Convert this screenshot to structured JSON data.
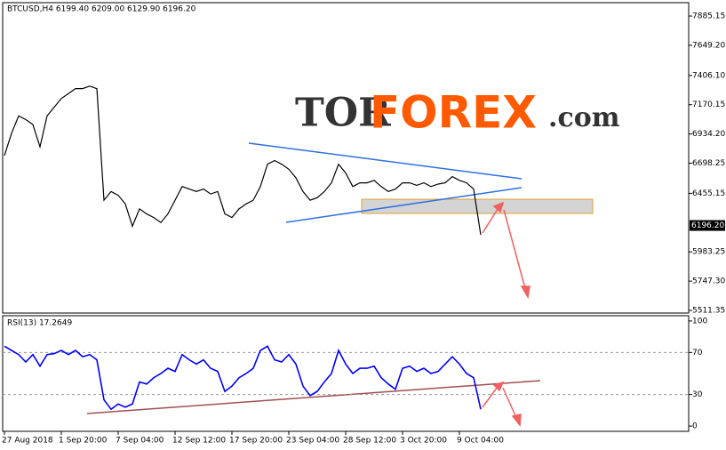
{
  "chart_data": [
    {
      "type": "line",
      "header": "BTCUSD,H4  6199.40 6209.00 6129.90 6196.20",
      "logo": {
        "tor": "TOR",
        "forex": "FOREX",
        "com": ".com"
      },
      "series": [
        {
          "name": "BTCUSD",
          "color": "#000000",
          "values": [
            6760,
            6940,
            7080,
            7050,
            7010,
            6830,
            7080,
            7150,
            7220,
            7260,
            7300,
            7300,
            7320,
            7300,
            6400,
            6470,
            6440,
            6370,
            6190,
            6330,
            6290,
            6260,
            6220,
            6290,
            6400,
            6510,
            6490,
            6470,
            6490,
            6450,
            6470,
            6290,
            6260,
            6330,
            6370,
            6400,
            6510,
            6690,
            6720,
            6690,
            6650,
            6580,
            6470,
            6400,
            6420,
            6470,
            6540,
            6690,
            6620,
            6510,
            6540,
            6540,
            6560,
            6510,
            6470,
            6490,
            6540,
            6540,
            6520,
            6540,
            6510,
            6530,
            6540,
            6590,
            6560,
            6540,
            6490,
            6120
          ]
        }
      ],
      "ylim": [
        5490,
        7993
      ],
      "yticks": [
        7885.15,
        {
          "value": 7649.2,
          "label": "7649.20"
        },
        {
          "value": 7406.1,
          "label": "7406.10"
        },
        7170.15,
        {
          "value": 6934.2,
          "label": "6934.20"
        },
        6698.25,
        6455.15,
        5983.25,
        {
          "value": 5747.3,
          "label": "5747.30"
        },
        5511.35
      ],
      "current_price": {
        "value": 6196.2,
        "label": "6196.20"
      }
    },
    {
      "type": "line",
      "header": "RSI(13) 17.2649",
      "categories": [
        "27 Aug 2018",
        null,
        null,
        null,
        null,
        null,
        null,
        null,
        "1 Sep 20:00",
        null,
        null,
        null,
        null,
        null,
        null,
        null,
        "7 Sep 04:00",
        null,
        null,
        null,
        null,
        null,
        null,
        null,
        "12 Sep 12:00",
        null,
        null,
        null,
        null,
        null,
        null,
        null,
        "17 Sep 20:00",
        null,
        null,
        null,
        null,
        null,
        null,
        null,
        "23 Sep 04:00",
        null,
        null,
        null,
        null,
        null,
        null,
        null,
        "28 Sep 12:00",
        null,
        null,
        null,
        null,
        null,
        null,
        null,
        "3 Oct 20:00",
        null,
        null,
        null,
        null,
        null,
        null,
        null,
        "9 Oct 04:00",
        null,
        null,
        null
      ],
      "series": [
        {
          "name": "RSI(13)",
          "color": "#0000ff",
          "values": [
            76,
            72,
            68,
            61,
            68,
            57,
            68,
            69,
            72,
            68,
            72,
            66,
            68,
            63,
            25,
            16,
            21,
            18,
            21,
            42,
            40,
            46,
            50,
            55,
            52,
            68,
            63,
            59,
            63,
            55,
            52,
            33,
            38,
            46,
            50,
            55,
            72,
            76,
            63,
            61,
            68,
            59,
            38,
            29,
            33,
            42,
            50,
            72,
            59,
            50,
            55,
            55,
            57,
            46,
            40,
            35,
            55,
            57,
            52,
            55,
            50,
            52,
            59,
            66,
            59,
            50,
            46,
            16
          ]
        }
      ],
      "ylim": [
        -5,
        105
      ],
      "yticks": [
        100,
        70,
        30,
        0
      ],
      "levels": [
        70,
        30
      ]
    }
  ]
}
